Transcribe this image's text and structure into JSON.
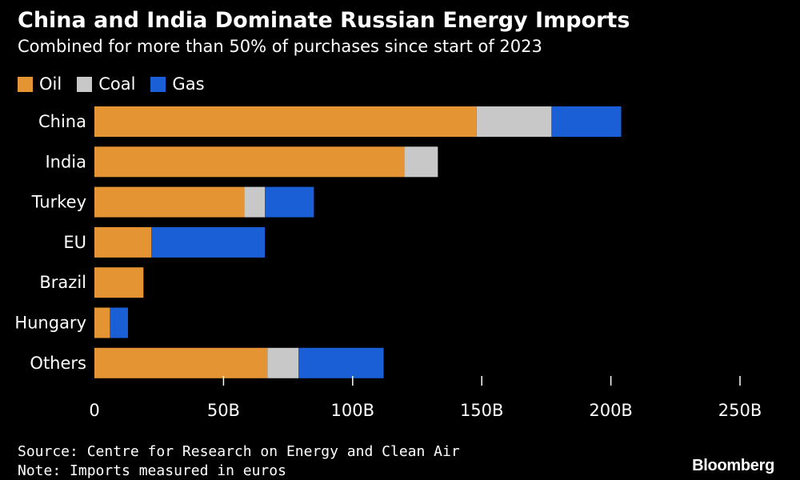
{
  "header": {
    "title": "China and India Dominate Russian Energy Imports",
    "subtitle": "Combined for more than 50% of purchases since start of 2023"
  },
  "legend": [
    {
      "label": "Oil",
      "color": "#E59434"
    },
    {
      "label": "Coal",
      "color": "#C8C8C8"
    },
    {
      "label": "Gas",
      "color": "#1A5FD6"
    }
  ],
  "footer": {
    "source": "Source: Centre for Research on Energy and Clean Air",
    "note": "Note: Imports measured in euros",
    "brand": "Bloomberg"
  },
  "chart_data": {
    "type": "bar",
    "orientation": "horizontal",
    "stacked": true,
    "categories": [
      "China",
      "India",
      "Turkey",
      "EU",
      "Brazil",
      "Hungary",
      "Others"
    ],
    "series": [
      {
        "name": "Oil",
        "values": [
          148,
          120,
          58,
          22,
          19,
          6,
          67
        ]
      },
      {
        "name": "Coal",
        "values": [
          29,
          13,
          8,
          0,
          0,
          0,
          12
        ]
      },
      {
        "name": "Gas",
        "values": [
          27,
          0,
          19,
          44,
          0,
          7,
          33
        ]
      }
    ],
    "xlim": [
      0,
      250
    ],
    "xticks": [
      {
        "value": 0,
        "label": "0"
      },
      {
        "value": 50,
        "label": "50B"
      },
      {
        "value": 100,
        "label": "100B"
      },
      {
        "value": 150,
        "label": "150B"
      },
      {
        "value": 200,
        "label": "200B"
      },
      {
        "value": 250,
        "label": "250B"
      }
    ],
    "grid": false,
    "legend_position": "top-left"
  }
}
